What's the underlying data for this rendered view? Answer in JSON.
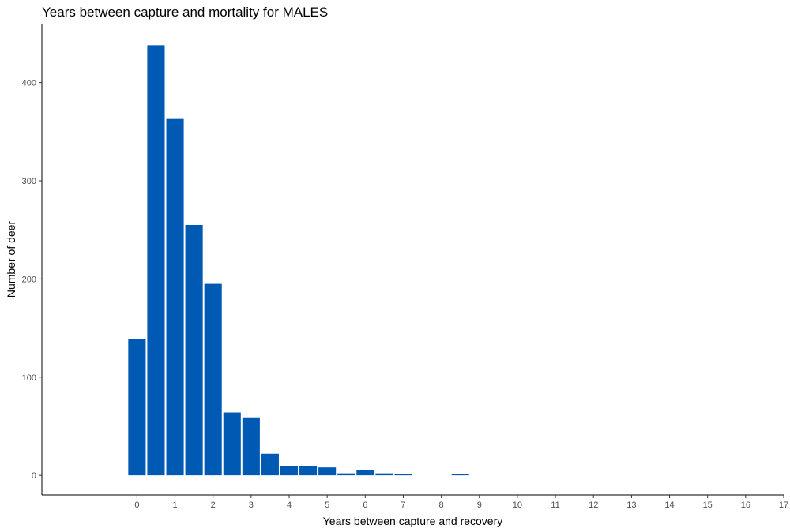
{
  "chart_data": {
    "type": "bar",
    "title": "Years between capture and mortality for MALES",
    "xlabel": "Years between capture and recovery",
    "ylabel": "Number of deer",
    "xlim": [
      -2.5,
      17
    ],
    "ylim": [
      -20,
      460
    ],
    "x_ticks": [
      "0",
      "1",
      "2",
      "3",
      "4",
      "5",
      "6",
      "7",
      "8",
      "9",
      "10",
      "11",
      "12",
      "13",
      "14",
      "15",
      "16",
      "17"
    ],
    "y_ticks": [
      0,
      100,
      200,
      300,
      400
    ],
    "bin_width": 0.5,
    "bins": [
      {
        "x": 0.0,
        "value": 139
      },
      {
        "x": 0.5,
        "value": 438
      },
      {
        "x": 1.0,
        "value": 363
      },
      {
        "x": 1.5,
        "value": 255
      },
      {
        "x": 2.0,
        "value": 195
      },
      {
        "x": 2.5,
        "value": 64
      },
      {
        "x": 3.0,
        "value": 59
      },
      {
        "x": 3.5,
        "value": 22
      },
      {
        "x": 4.0,
        "value": 9
      },
      {
        "x": 4.5,
        "value": 9
      },
      {
        "x": 5.0,
        "value": 8
      },
      {
        "x": 5.5,
        "value": 2
      },
      {
        "x": 6.0,
        "value": 5
      },
      {
        "x": 6.5,
        "value": 2
      },
      {
        "x": 7.0,
        "value": 1
      },
      {
        "x": 8.5,
        "value": 1
      }
    ],
    "bar_color": "#0059b3",
    "grid": false,
    "legend": "none"
  }
}
